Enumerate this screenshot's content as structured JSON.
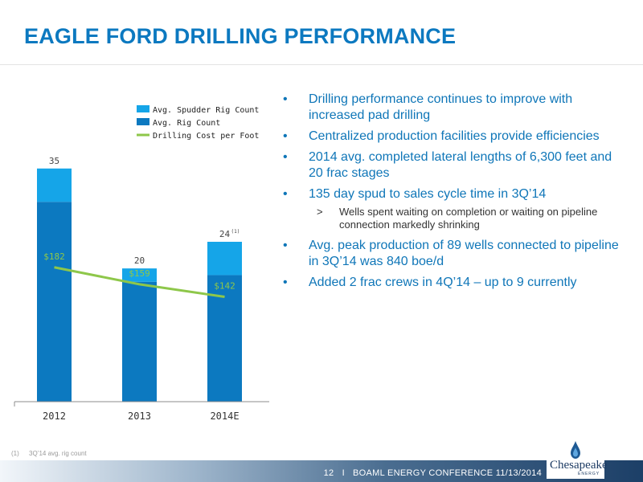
{
  "header": {
    "title": "EAGLE FORD DRILLING PERFORMANCE"
  },
  "chart_data": {
    "type": "bar",
    "categories": [
      "2012",
      "2013",
      "2014E"
    ],
    "series": [
      {
        "name": "Avg. Rig Count",
        "values": [
          30,
          18,
          19
        ],
        "color": "#0c79c0"
      },
      {
        "name": "Avg. Spudder Rig Count",
        "values": [
          5,
          2,
          5
        ],
        "color": "#15a5e8"
      },
      {
        "name": "Drilling Cost per Foot",
        "type": "line",
        "values": [
          182,
          159,
          142
        ],
        "color": "#8ec74a"
      }
    ],
    "total_labels": [
      "35",
      "20",
      "24"
    ],
    "total_label_superscripts": [
      "",
      "",
      "(1)"
    ],
    "line_labels": [
      "$182",
      "$159",
      "$142"
    ],
    "ylim_bars": [
      0,
      41
    ],
    "ylim_line": [
      0,
      370
    ],
    "legend_position": "top-right"
  },
  "bullets": [
    {
      "text": "Drilling performance continues to improve with increased pad drilling"
    },
    {
      "text": "Centralized production facilities provide efficiencies"
    },
    {
      "text": "2014 avg. completed lateral lengths of 6,300 feet and 20 frac stages"
    },
    {
      "text": "135 day spud to sales cycle time in 3Q’14",
      "sub": {
        "marker": ">",
        "text": "Wells spent waiting on completion or waiting on pipeline connection markedly shrinking"
      }
    },
    {
      "text": "Avg. peak production of 89 wells connected to pipeline in 3Q’14 was 840 boe/d"
    },
    {
      "text": "Added 2 frac crews in 4Q’14 – up to 9 currently"
    }
  ],
  "footnote": {
    "number": "(1)",
    "text": "3Q’14 avg. rig count"
  },
  "footer": {
    "page": "12",
    "separator": "I",
    "event": "BOAML ENERGY CONFERENCE",
    "date": "11/13/2014",
    "logo_text": "Chesapeake",
    "logo_subtext": "ENERGY"
  },
  "colors": {
    "title": "#0c79c0",
    "bullet_text": "#0f76b8",
    "axis": "#8c8c8c"
  },
  "bullet_marker": "•"
}
